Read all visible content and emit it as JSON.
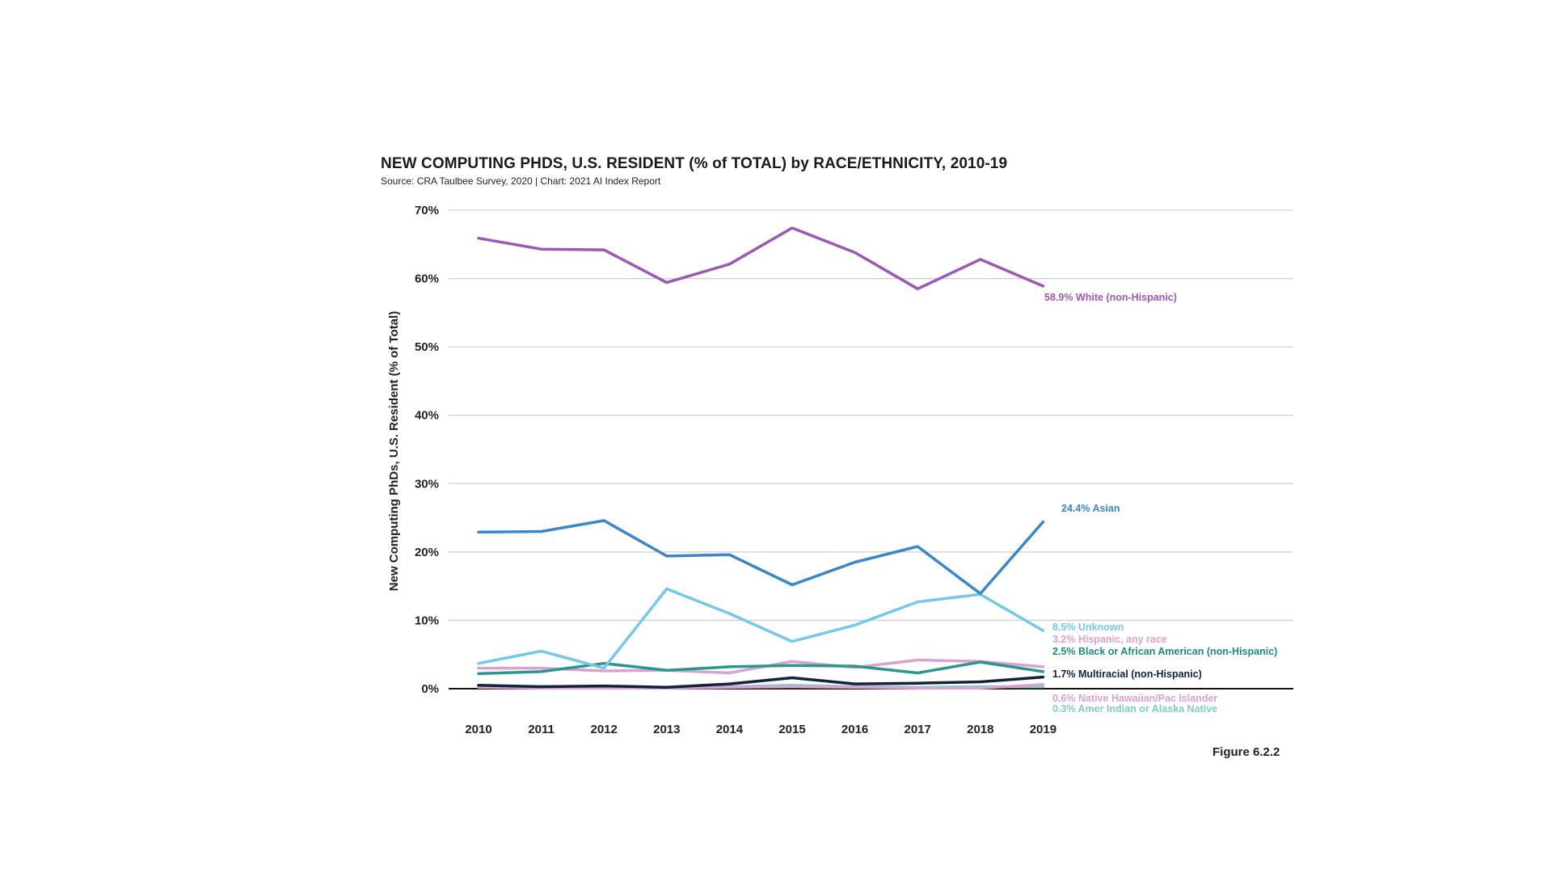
{
  "header": {
    "title": "NEW COMPUTING PHDS, U.S. RESIDENT (% of TOTAL) by RACE/ETHNICITY, 2010-19",
    "source": "Source: CRA Taulbee Survey, 2020 | Chart: 2021 AI Index Report"
  },
  "footer": {
    "figure_label": "Figure 6.2.2"
  },
  "chart_data": {
    "type": "line",
    "title": "NEW COMPUTING PHDS, U.S. RESIDENT (% of TOTAL) by RACE/ETHNICITY, 2010-19",
    "xlabel": "",
    "ylabel": "New Computing PhDs, U.S. Resident (% of Total)",
    "ylim": [
      0,
      70
    ],
    "yticks": [
      "0%",
      "10%",
      "20%",
      "30%",
      "40%",
      "50%",
      "60%",
      "70%"
    ],
    "ytick_values": [
      0,
      10,
      20,
      30,
      40,
      50,
      60,
      70
    ],
    "x": [
      "2010",
      "2011",
      "2012",
      "2013",
      "2014",
      "2015",
      "2016",
      "2017",
      "2018",
      "2019"
    ],
    "grid": true,
    "series": [
      {
        "name": "White (non-Hispanic)",
        "color": "#9b59b6",
        "values": [
          65.9,
          64.3,
          64.2,
          59.4,
          62.1,
          67.4,
          63.8,
          58.5,
          62.8,
          58.9
        ],
        "end_label": "58.9% White (non-Hispanic)"
      },
      {
        "name": "Asian",
        "color": "#3a87c8",
        "values": [
          22.9,
          23.0,
          24.6,
          19.4,
          19.6,
          15.2,
          18.5,
          20.8,
          13.9,
          24.4
        ],
        "end_label": "24.4% Asian"
      },
      {
        "name": "Unknown",
        "color": "#74c9e9",
        "values": [
          3.7,
          5.5,
          3.0,
          14.6,
          11.0,
          6.9,
          9.3,
          12.7,
          13.8,
          8.5
        ],
        "end_label": "8.5% Unknown"
      },
      {
        "name": "Hispanic, any race",
        "color": "#dba1d1",
        "values": [
          3.0,
          3.0,
          2.6,
          2.7,
          2.3,
          4.0,
          3.1,
          4.2,
          4.0,
          3.2
        ],
        "end_label": "3.2% Hispanic, any race"
      },
      {
        "name": "Black or African American (non-Hispanic)",
        "color": "#2a9690",
        "values": [
          2.2,
          2.5,
          3.7,
          2.7,
          3.2,
          3.4,
          3.3,
          2.3,
          3.9,
          2.5
        ],
        "end_label": "2.5% Black or African American (non-Hispanic)"
      },
      {
        "name": "Multiracial (non-Hispanic)",
        "color": "#12213d",
        "values": [
          0.5,
          0.3,
          0.4,
          0.2,
          0.7,
          1.6,
          0.7,
          0.8,
          1.0,
          1.7
        ],
        "end_label": "1.7% Multiracial (non-Hispanic)"
      },
      {
        "name": "Native Hawaiian/Pac Islander",
        "color": "#dba1d1",
        "values": [
          0.2,
          0.1,
          0.1,
          0.1,
          0.2,
          0.3,
          0.2,
          0.1,
          0.1,
          0.6
        ],
        "end_label": "0.6% Native Hawaiian/Pac Islander"
      },
      {
        "name": "Amer Indian or Alaska Native",
        "color": "#7fcfc3",
        "values": [
          0.4,
          0.3,
          0.1,
          0.2,
          0.3,
          0.5,
          0.3,
          0.2,
          0.3,
          0.3
        ],
        "end_label": "0.3% Amer Indian or Alaska Native"
      }
    ]
  }
}
